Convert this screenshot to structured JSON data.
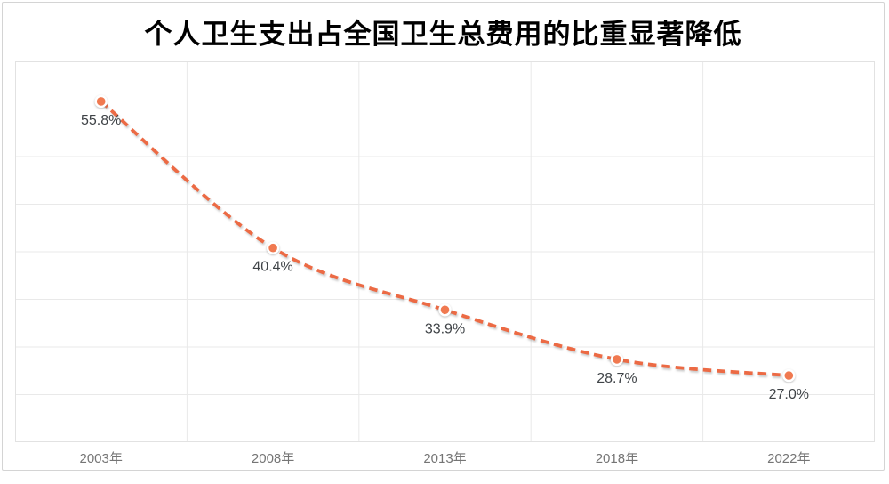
{
  "title": "个人卫生支出占全国卫生总费用的比重显著降低",
  "chart_data": {
    "type": "line",
    "title": "个人卫生支出占全国卫生总费用的比重显著降低",
    "categories": [
      "2003年",
      "2008年",
      "2013年",
      "2018年",
      "2022年"
    ],
    "values": [
      55.8,
      40.4,
      33.9,
      28.7,
      27.0
    ],
    "data_labels": [
      "55.8%",
      "40.4%",
      "33.9%",
      "28.7%",
      "27.0%"
    ],
    "xlabel": "",
    "ylabel": "",
    "ylim": [
      20,
      60
    ],
    "y_grid_step": 5,
    "grid": true,
    "legend": "none",
    "line_style": "dashed",
    "marker": "circle",
    "colors": {
      "line": "#ec6a44",
      "marker": "#f07950",
      "marker_ring": "#ffffff",
      "data_label": "#3f4347",
      "axis_label": "#757575",
      "gridline": "#e9e9e9",
      "plot_border": "#e2e2e2",
      "card_border": "#d4d4d4",
      "background": "#ffffff"
    }
  }
}
